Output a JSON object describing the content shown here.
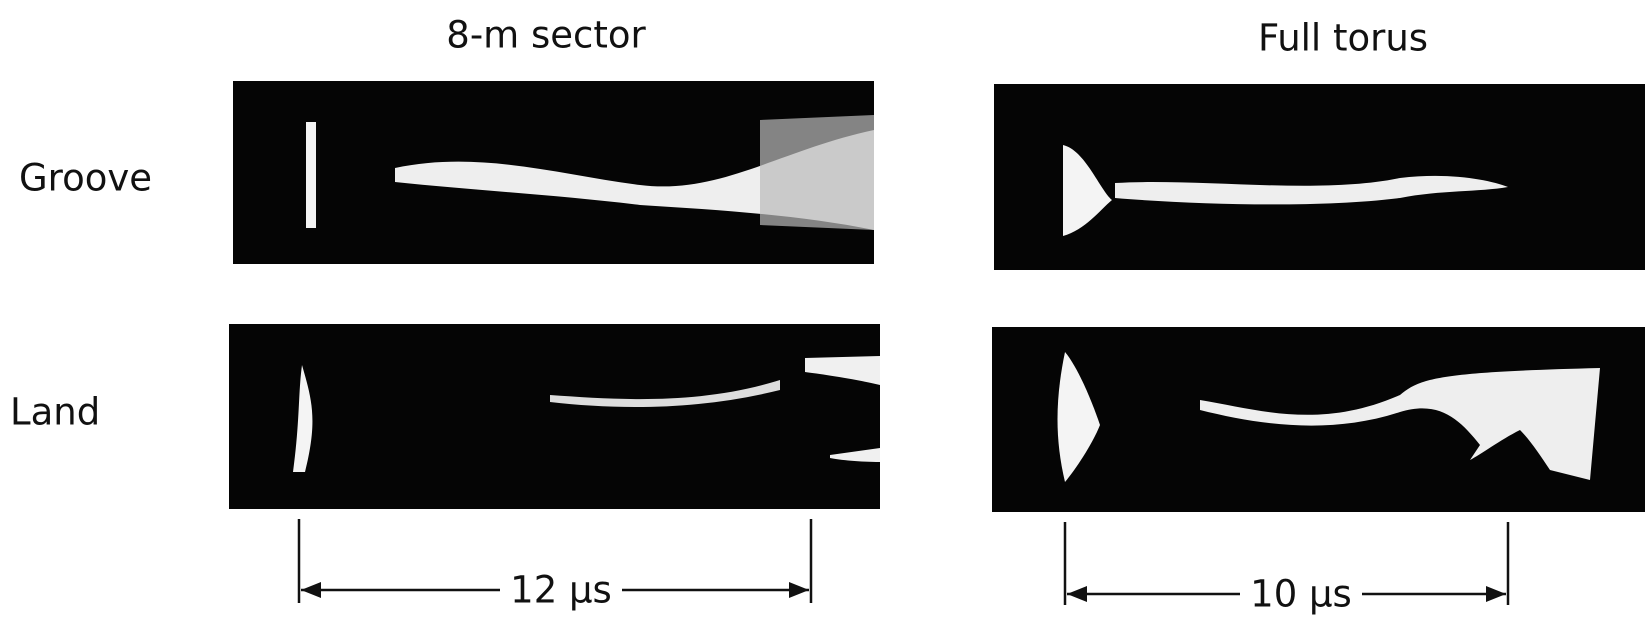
{
  "columns": [
    {
      "title": "8-m sector",
      "scale_label": "12 μs"
    },
    {
      "title": "Full torus",
      "scale_label": "10 μs"
    }
  ],
  "rows": [
    {
      "label": "Groove"
    },
    {
      "label": "Land"
    }
  ]
}
